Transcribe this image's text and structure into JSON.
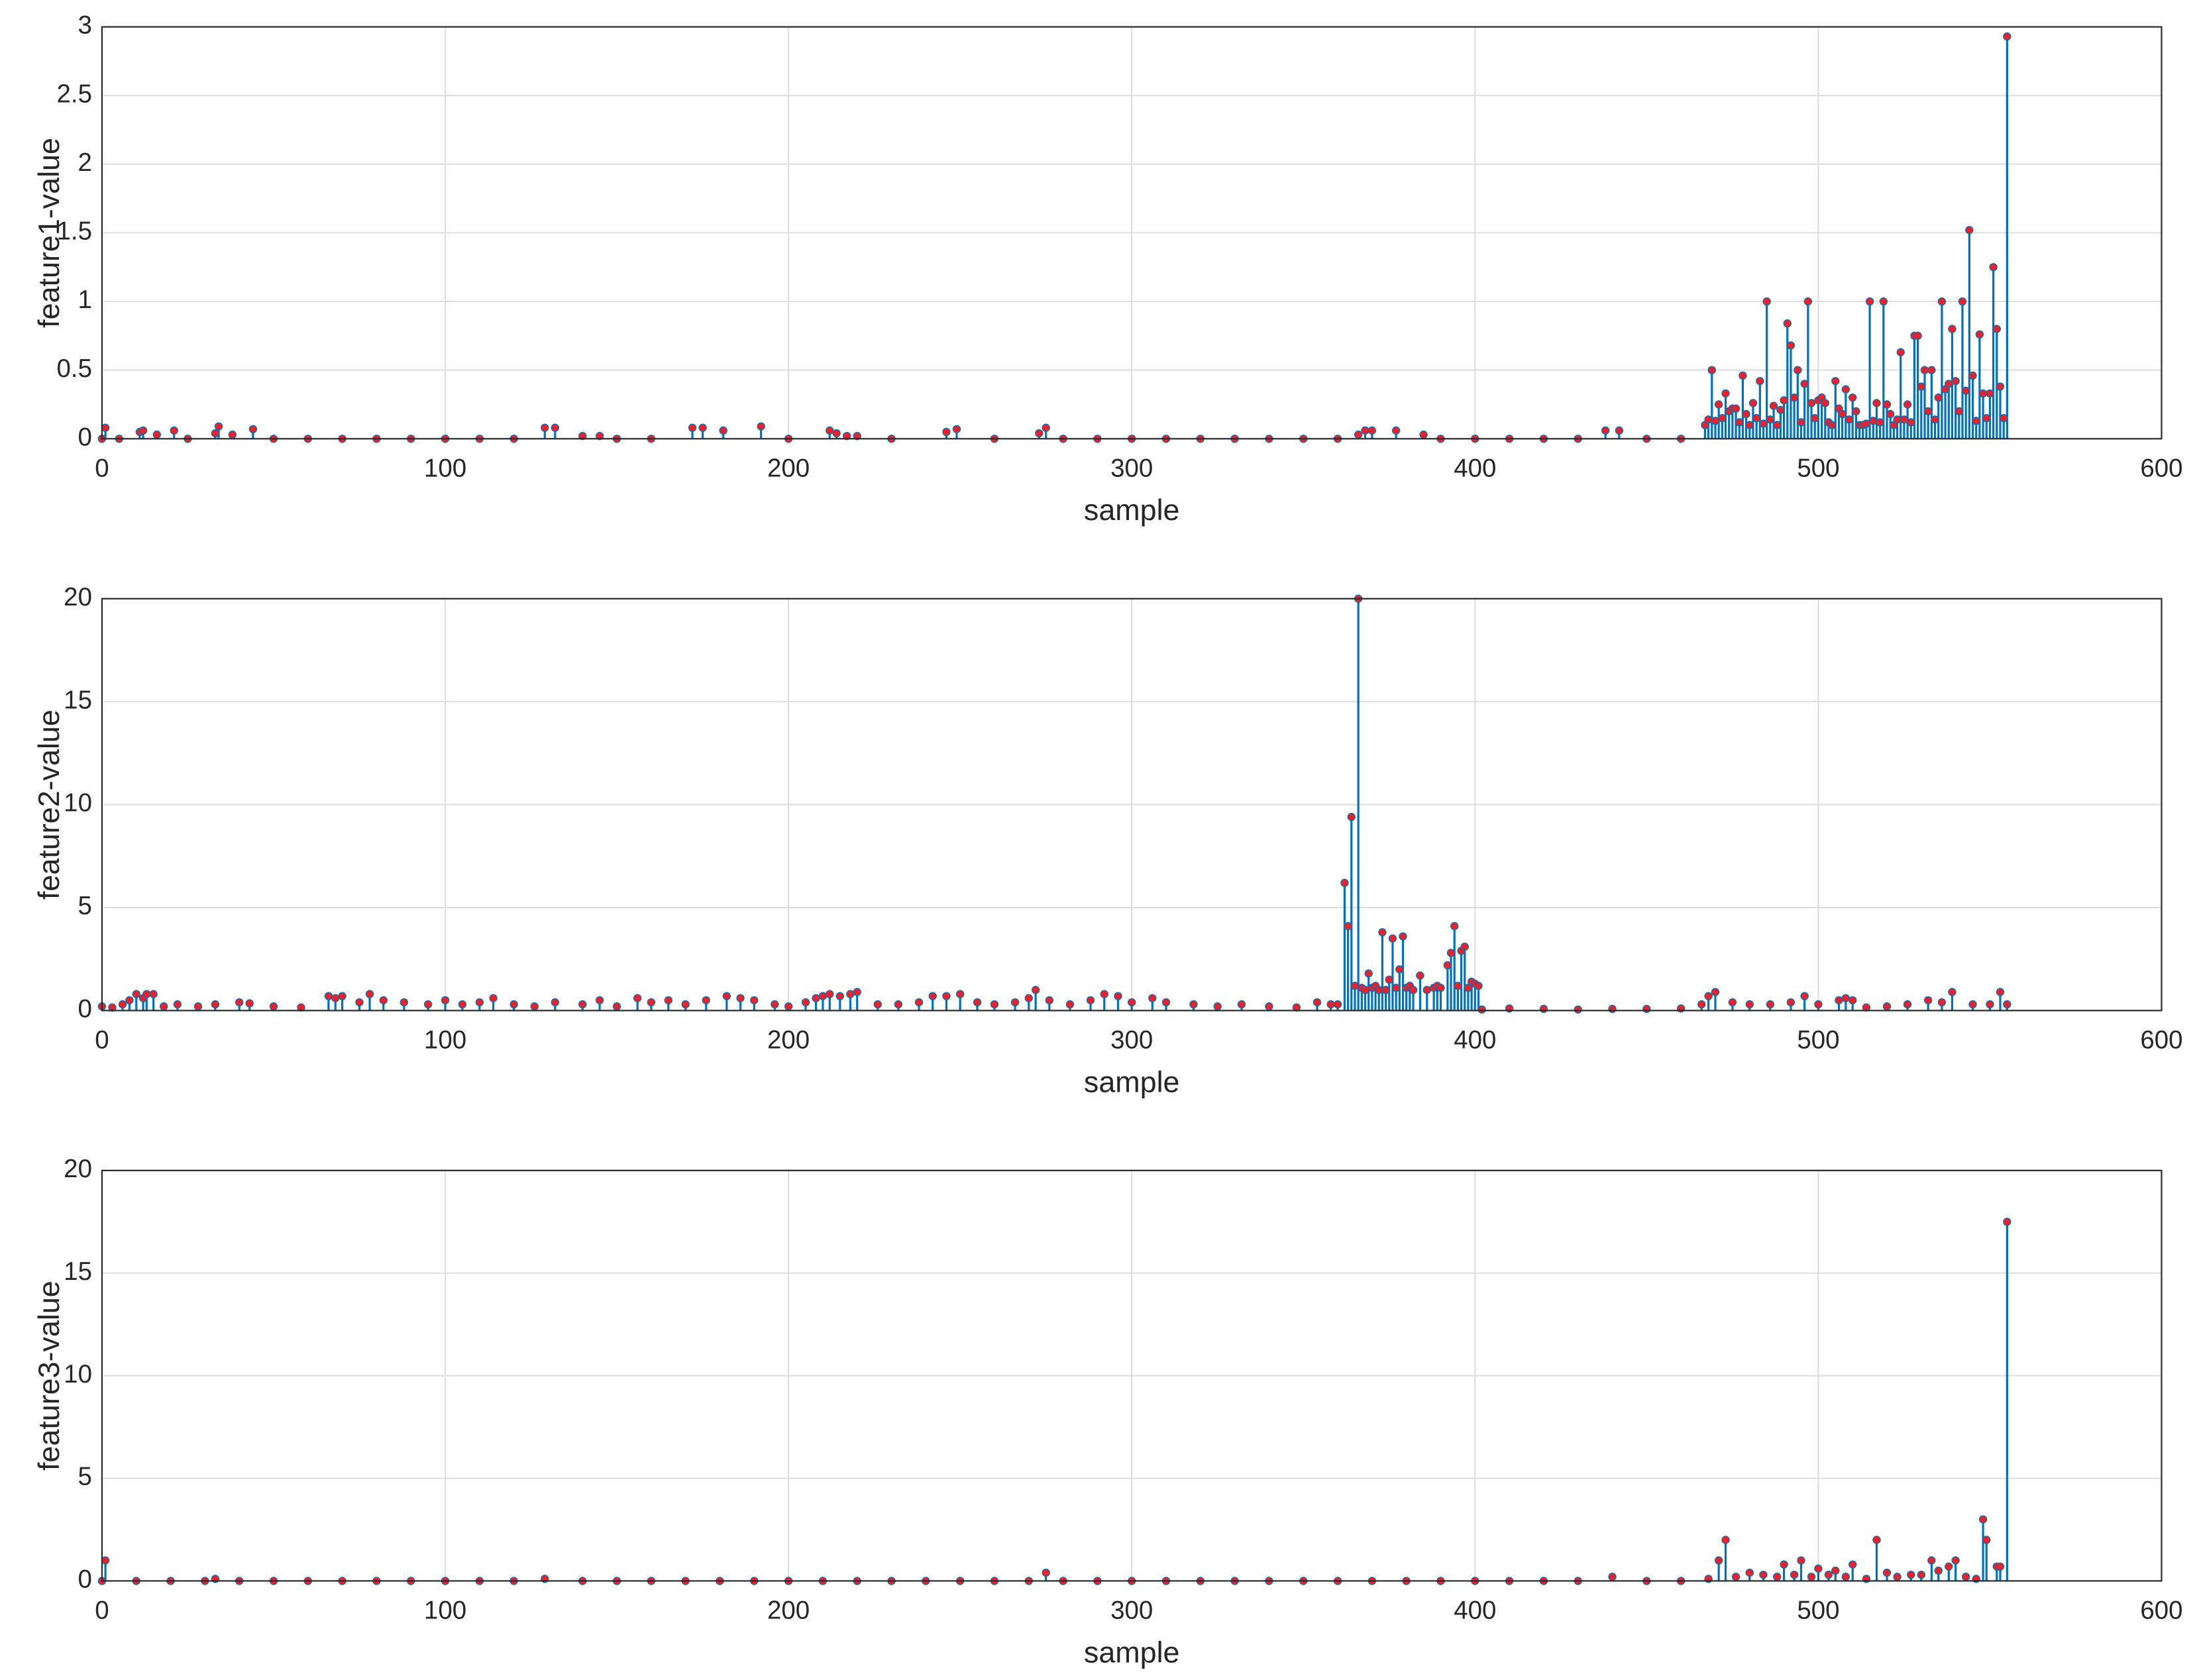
{
  "chart_data": [
    {
      "type": "stem",
      "xlabel": "sample",
      "ylabel": "feature1-value",
      "xlim": [
        0,
        600
      ],
      "xticks": [
        0,
        100,
        200,
        300,
        400,
        500,
        600
      ],
      "ylim": [
        0,
        3
      ],
      "yticks": [
        0,
        0.5,
        1,
        1.5,
        2,
        2.5,
        3
      ],
      "grid": true,
      "stem_color": "#0072bd",
      "marker_color": "#e8212a",
      "x": [
        0,
        1,
        5,
        11,
        12,
        16,
        21,
        25,
        33,
        34,
        38,
        44,
        50,
        60,
        70,
        80,
        90,
        100,
        110,
        120,
        129,
        132,
        140,
        145,
        150,
        160,
        172,
        175,
        181,
        192,
        200,
        212,
        214,
        217,
        220,
        230,
        246,
        249,
        260,
        273,
        275,
        280,
        290,
        300,
        310,
        320,
        330,
        340,
        350,
        360,
        366,
        368,
        370,
        377,
        385,
        390,
        400,
        410,
        420,
        430,
        438,
        442,
        450,
        460,
        467,
        468,
        469,
        470,
        471,
        472,
        473,
        474,
        475,
        476,
        477,
        478,
        479,
        480,
        481,
        482,
        483,
        484,
        485,
        486,
        487,
        488,
        489,
        490,
        491,
        492,
        493,
        494,
        495,
        496,
        497,
        498,
        499,
        500,
        501,
        502,
        503,
        504,
        505,
        506,
        507,
        508,
        509,
        510,
        511,
        512,
        513,
        514,
        515,
        516,
        517,
        518,
        519,
        520,
        521,
        522,
        523,
        524,
        525,
        526,
        527,
        528,
        529,
        530,
        531,
        532,
        533,
        534,
        535,
        536,
        537,
        538,
        539,
        540,
        541,
        542,
        543,
        544,
        545,
        546,
        547,
        548,
        549,
        550,
        551,
        552,
        553,
        554,
        555
      ],
      "values": [
        0,
        0.08,
        0,
        0.05,
        0.06,
        0.03,
        0.06,
        0,
        0.04,
        0.09,
        0.03,
        0.07,
        0,
        0,
        0,
        0,
        0,
        0,
        0,
        0,
        0.08,
        0.08,
        0.02,
        0.02,
        0,
        0,
        0.08,
        0.08,
        0.06,
        0.09,
        0,
        0.06,
        0.04,
        0.02,
        0.02,
        0,
        0.05,
        0.07,
        0,
        0.04,
        0.08,
        0,
        0,
        0,
        0,
        0,
        0,
        0,
        0,
        0,
        0.03,
        0.06,
        0.06,
        0.06,
        0.03,
        0,
        0,
        0,
        0,
        0,
        0.06,
        0.06,
        0,
        0,
        0.1,
        0.14,
        0.5,
        0.13,
        0.25,
        0.15,
        0.33,
        0.2,
        0.22,
        0.22,
        0.12,
        0.46,
        0.18,
        0.1,
        0.26,
        0.15,
        0.42,
        0.11,
        1.0,
        0.14,
        0.24,
        0.1,
        0.21,
        0.28,
        0.84,
        0.68,
        0.3,
        0.5,
        0.12,
        0.4,
        1.0,
        0.26,
        0.15,
        0.28,
        0.3,
        0.26,
        0.12,
        0.1,
        0.42,
        0.22,
        0.18,
        0.36,
        0.14,
        0.3,
        0.2,
        0.1,
        0.1,
        0.11,
        1.0,
        0.13,
        0.26,
        0.12,
        1.0,
        0.25,
        0.18,
        0.1,
        0.14,
        0.63,
        0.14,
        0.25,
        0.12,
        0.75,
        0.75,
        0.38,
        0.5,
        0.2,
        0.5,
        0.14,
        0.3,
        1.0,
        0.36,
        0.4,
        0.8,
        0.42,
        0.2,
        1.0,
        0.35,
        1.52,
        0.46,
        0.13,
        0.76,
        0.33,
        0.15,
        0.33,
        1.25,
        0.8,
        0.38,
        0.15,
        2.93
      ]
    },
    {
      "type": "stem",
      "xlabel": "sample",
      "ylabel": "feature2-value",
      "xlim": [
        0,
        600
      ],
      "xticks": [
        0,
        100,
        200,
        300,
        400,
        500,
        600
      ],
      "ylim": [
        0,
        20
      ],
      "yticks": [
        0,
        5,
        10,
        15,
        20
      ],
      "grid": true,
      "stem_color": "#0072bd",
      "marker_color": "#e8212a",
      "x": [
        0,
        3,
        6,
        8,
        10,
        12,
        13,
        15,
        18,
        22,
        28,
        33,
        40,
        43,
        50,
        58,
        66,
        68,
        70,
        75,
        78,
        82,
        88,
        95,
        100,
        105,
        110,
        114,
        120,
        126,
        132,
        140,
        145,
        150,
        156,
        160,
        165,
        170,
        176,
        182,
        186,
        190,
        196,
        200,
        205,
        208,
        210,
        212,
        215,
        218,
        220,
        226,
        232,
        238,
        242,
        246,
        250,
        255,
        260,
        266,
        270,
        272,
        276,
        282,
        288,
        292,
        296,
        300,
        306,
        310,
        318,
        325,
        332,
        340,
        348,
        354,
        358,
        360,
        362,
        363,
        364,
        365,
        366,
        367,
        368,
        369,
        370,
        371,
        372,
        373,
        374,
        375,
        376,
        377,
        378,
        379,
        380,
        381,
        382,
        384,
        386,
        388,
        389,
        390,
        392,
        393,
        394,
        395,
        396,
        397,
        398,
        399,
        400,
        401,
        402,
        410,
        420,
        430,
        440,
        450,
        460,
        466,
        468,
        470,
        475,
        480,
        486,
        492,
        496,
        500,
        506,
        508,
        510,
        514,
        520,
        526,
        532,
        536,
        539,
        545,
        550,
        553,
        555
      ],
      "values": [
        0.2,
        0.15,
        0.3,
        0.5,
        0.8,
        0.6,
        0.8,
        0.8,
        0.2,
        0.3,
        0.2,
        0.3,
        0.4,
        0.35,
        0.2,
        0.15,
        0.7,
        0.6,
        0.7,
        0.4,
        0.8,
        0.5,
        0.4,
        0.3,
        0.5,
        0.3,
        0.4,
        0.6,
        0.3,
        0.2,
        0.4,
        0.3,
        0.5,
        0.2,
        0.6,
        0.4,
        0.5,
        0.3,
        0.5,
        0.7,
        0.6,
        0.5,
        0.3,
        0.2,
        0.4,
        0.6,
        0.7,
        0.8,
        0.7,
        0.8,
        0.9,
        0.3,
        0.3,
        0.4,
        0.7,
        0.7,
        0.8,
        0.4,
        0.3,
        0.4,
        0.6,
        1.0,
        0.5,
        0.3,
        0.5,
        0.8,
        0.7,
        0.4,
        0.6,
        0.4,
        0.3,
        0.2,
        0.3,
        0.2,
        0.15,
        0.4,
        0.3,
        0.3,
        6.2,
        4.1,
        9.4,
        1.2,
        20,
        1.1,
        1.0,
        1.8,
        1.1,
        1.2,
        1.0,
        3.8,
        1.0,
        1.5,
        3.5,
        1.1,
        2.0,
        3.6,
        1.1,
        1.2,
        1.0,
        1.7,
        1.0,
        1.1,
        1.2,
        1.1,
        2.2,
        2.8,
        4.1,
        1.2,
        2.9,
        3.1,
        1.1,
        1.4,
        1.3,
        1.2,
        0.05,
        0.1,
        0.08,
        0.05,
        0.08,
        0.08,
        0.1,
        0.3,
        0.7,
        0.9,
        0.4,
        0.3,
        0.3,
        0.4,
        0.7,
        0.3,
        0.5,
        0.6,
        0.5,
        0.15,
        0.2,
        0.3,
        0.5,
        0.4,
        0.9,
        0.3,
        0.3,
        0.9,
        0.3
      ]
    },
    {
      "type": "stem",
      "xlabel": "sample",
      "ylabel": "feature3-value",
      "xlim": [
        0,
        600
      ],
      "xticks": [
        0,
        100,
        200,
        300,
        400,
        500,
        600
      ],
      "ylim": [
        0,
        20
      ],
      "yticks": [
        0,
        5,
        10,
        15,
        20
      ],
      "grid": true,
      "stem_color": "#0072bd",
      "marker_color": "#e8212a",
      "x": [
        0,
        1,
        10,
        20,
        30,
        33,
        40,
        50,
        60,
        70,
        80,
        90,
        100,
        110,
        120,
        129,
        140,
        150,
        160,
        170,
        180,
        190,
        200,
        210,
        220,
        230,
        240,
        250,
        260,
        270,
        275,
        280,
        290,
        300,
        310,
        320,
        330,
        340,
        350,
        360,
        370,
        380,
        390,
        400,
        410,
        420,
        430,
        440,
        450,
        460,
        468,
        471,
        473,
        476,
        480,
        484,
        488,
        490,
        493,
        495,
        498,
        500,
        503,
        505,
        508,
        510,
        514,
        517,
        520,
        523,
        527,
        530,
        533,
        535,
        538,
        540,
        543,
        546,
        548,
        549,
        552,
        553,
        555
      ],
      "values": [
        0,
        1.0,
        0,
        0,
        0,
        0.1,
        0,
        0,
        0,
        0,
        0,
        0,
        0,
        0,
        0,
        0.1,
        0,
        0,
        0,
        0,
        0,
        0,
        0,
        0,
        0,
        0,
        0,
        0,
        0,
        0,
        0.4,
        0,
        0,
        0,
        0,
        0,
        0,
        0,
        0,
        0,
        0,
        0,
        0,
        0,
        0,
        0,
        0,
        0.2,
        0,
        0,
        0.1,
        1.0,
        2.0,
        0.2,
        0.4,
        0.3,
        0.2,
        0.8,
        0.3,
        1.0,
        0.2,
        0.6,
        0.3,
        0.5,
        0.2,
        0.8,
        0.1,
        2.0,
        0.4,
        0.2,
        0.3,
        0.3,
        1.0,
        0.5,
        0.7,
        1.0,
        0.2,
        0.1,
        3.0,
        2.0,
        0.7,
        0.7,
        17.5
      ]
    }
  ]
}
